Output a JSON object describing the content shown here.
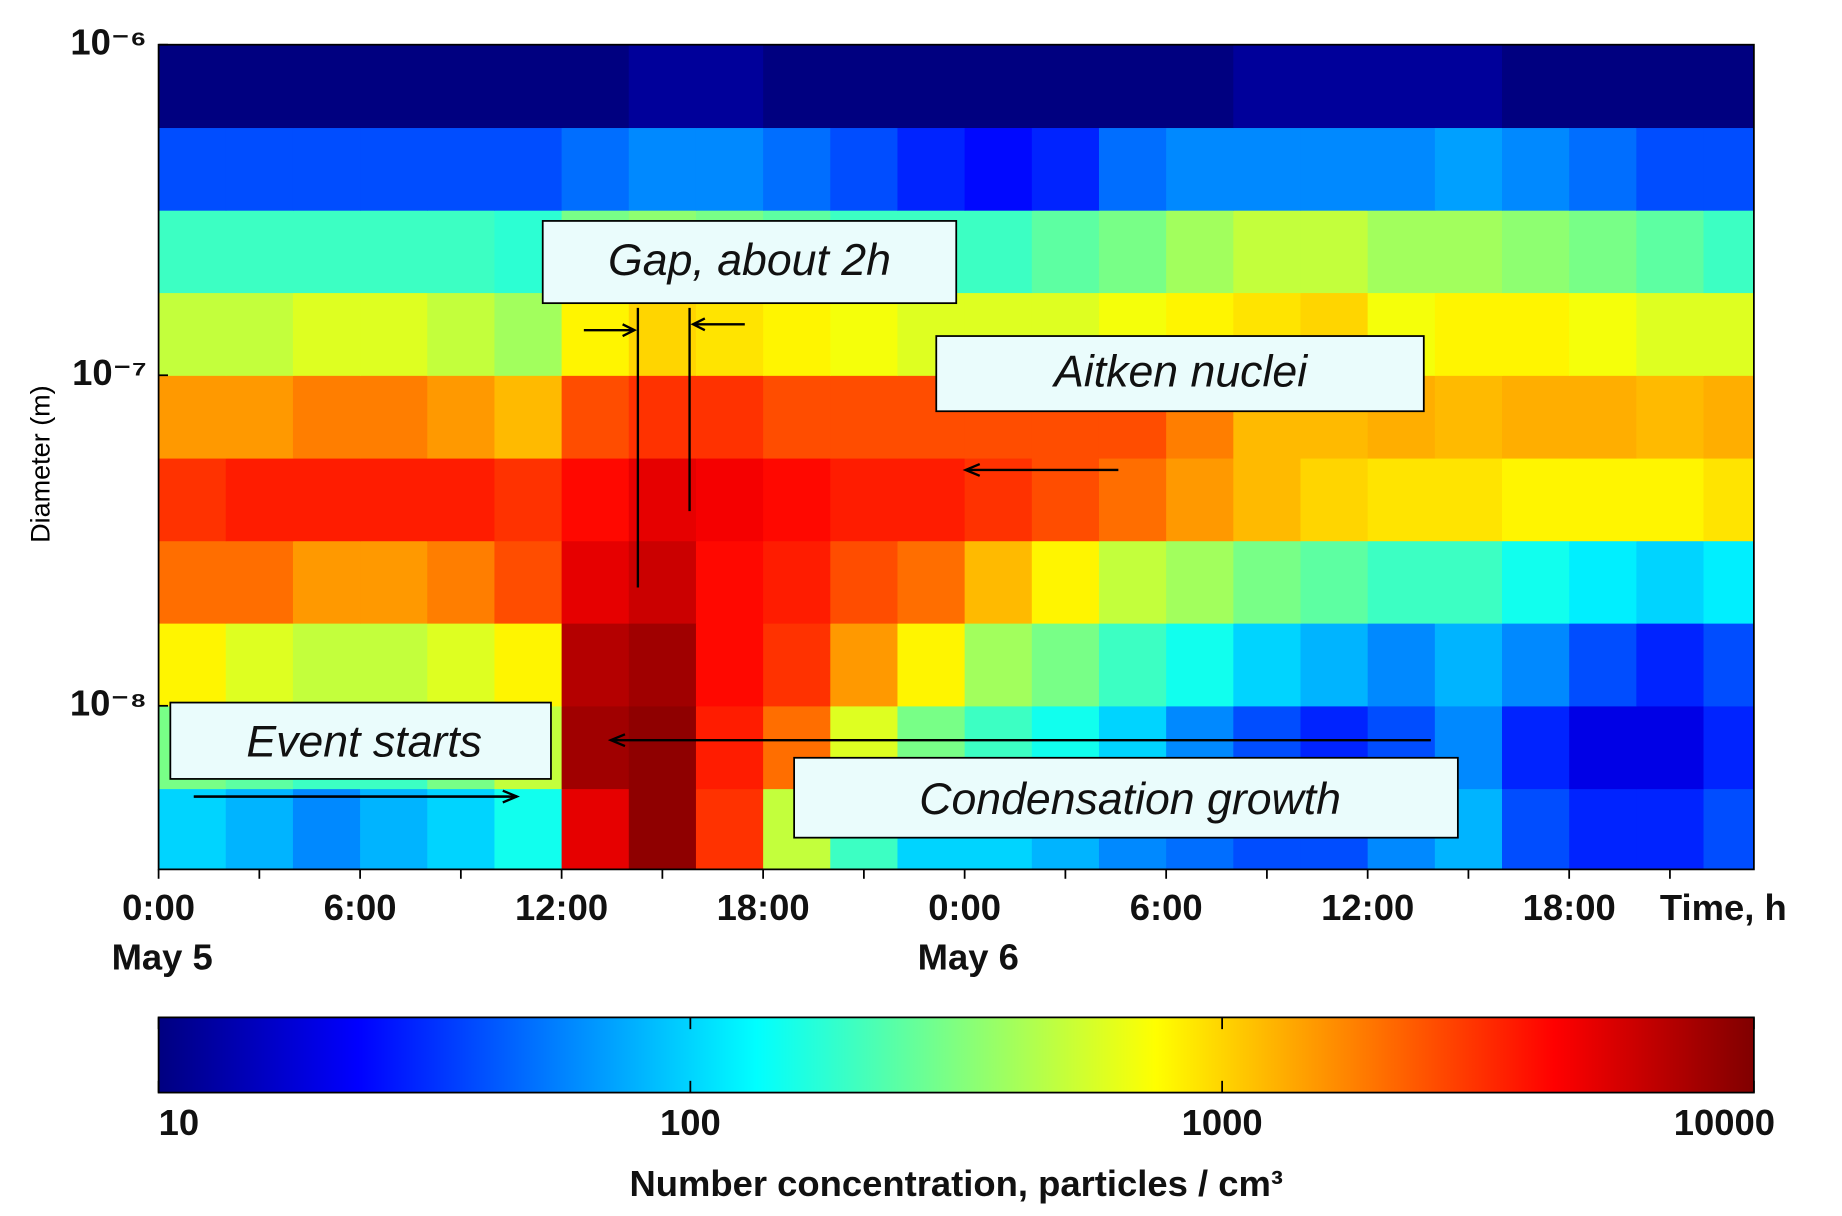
{
  "chart_data": {
    "type": "heatmap",
    "colormap": "jet",
    "log_y": true,
    "log_color": true,
    "y_label": "Diameter (m)",
    "x_label": "Time, h",
    "xlim": [
      0,
      47.5
    ],
    "xticks": [
      {
        "value": 0,
        "label": "0:00"
      },
      {
        "value": 6,
        "label": "6:00"
      },
      {
        "value": 12,
        "label": "12:00"
      },
      {
        "value": 18,
        "label": "18:00"
      },
      {
        "value": 24,
        "label": "0:00"
      },
      {
        "value": 30,
        "label": "6:00"
      },
      {
        "value": 36,
        "label": "12:00"
      },
      {
        "value": 42,
        "label": "18:00"
      }
    ],
    "xminorticks": [
      3,
      9,
      15,
      21,
      27,
      33,
      39,
      45
    ],
    "date_labels": [
      {
        "x": 0,
        "text": "May 5"
      },
      {
        "x": 24,
        "text": "May 6"
      }
    ],
    "ylim": [
      3.2e-09,
      1e-06
    ],
    "yticks": [
      {
        "value": 1e-08,
        "label": "10⁻⁸"
      },
      {
        "value": 1e-07,
        "label": "10⁻⁷"
      },
      {
        "value": 1e-06,
        "label": "10⁻⁶"
      }
    ],
    "x_bins": [
      0,
      2,
      4,
      6,
      8,
      10,
      12,
      14,
      16,
      18,
      20,
      22,
      24,
      26,
      28,
      30,
      32,
      34,
      36,
      38,
      40,
      42,
      44,
      46,
      47.5
    ],
    "y_bins": [
      3.2e-09,
      5.62e-09,
      1e-08,
      1.78e-08,
      3.16e-08,
      5.62e-08,
      1e-07,
      1.78e-07,
      3.16e-07,
      5.62e-07,
      1e-06
    ],
    "values": [
      [
        100,
        80,
        60,
        80,
        100,
        150,
        5000,
        9000,
        3000,
        500,
        200,
        100,
        100,
        80,
        60,
        50,
        40,
        40,
        60,
        80,
        40,
        30,
        30,
        40
      ],
      [
        300,
        250,
        200,
        200,
        300,
        500,
        8000,
        9000,
        3500,
        2000,
        600,
        300,
        200,
        150,
        100,
        60,
        40,
        30,
        40,
        60,
        30,
        20,
        20,
        30
      ],
      [
        800,
        600,
        500,
        500,
        600,
        800,
        7000,
        8000,
        4000,
        3000,
        1500,
        800,
        400,
        300,
        200,
        150,
        100,
        80,
        60,
        80,
        60,
        40,
        30,
        40
      ],
      [
        2000,
        2000,
        1500,
        1500,
        1800,
        2500,
        5000,
        6000,
        4000,
        3500,
        2500,
        2000,
        1200,
        800,
        500,
        400,
        300,
        250,
        200,
        200,
        150,
        120,
        100,
        120
      ],
      [
        3000,
        3500,
        3500,
        3500,
        3500,
        3000,
        4000,
        5000,
        4500,
        4000,
        3500,
        3500,
        3000,
        2500,
        2000,
        1500,
        1200,
        1000,
        900,
        900,
        800,
        800,
        800,
        900
      ],
      [
        1500,
        1500,
        1800,
        1800,
        1500,
        1200,
        2500,
        3000,
        3000,
        2500,
        2500,
        2500,
        2500,
        2500,
        2500,
        1800,
        1200,
        1200,
        1300,
        1200,
        1300,
        1300,
        1200,
        1300
      ],
      [
        500,
        500,
        600,
        600,
        500,
        400,
        800,
        1000,
        900,
        800,
        700,
        600,
        600,
        600,
        700,
        800,
        900,
        1000,
        700,
        800,
        800,
        700,
        600,
        600
      ],
      [
        200,
        200,
        200,
        200,
        200,
        180,
        300,
        350,
        300,
        250,
        200,
        200,
        200,
        250,
        300,
        400,
        500,
        500,
        400,
        400,
        350,
        300,
        250,
        200
      ],
      [
        40,
        40,
        40,
        40,
        40,
        40,
        50,
        60,
        60,
        50,
        40,
        30,
        25,
        30,
        50,
        60,
        60,
        60,
        60,
        70,
        60,
        50,
        40,
        40
      ],
      [
        10,
        10,
        10,
        10,
        10,
        10,
        10,
        12,
        12,
        10,
        10,
        10,
        10,
        10,
        10,
        10,
        12,
        12,
        12,
        12,
        10,
        10,
        10,
        10
      ]
    ],
    "clim": [
      10,
      10000
    ],
    "cticks": [
      10,
      100,
      1000,
      10000
    ],
    "colorbar_label": "Number concentration, particles / cm³",
    "annotations": [
      "Gap, about 2h",
      "Aitken nuclei",
      "Event starts",
      "Condensation growth"
    ]
  }
}
